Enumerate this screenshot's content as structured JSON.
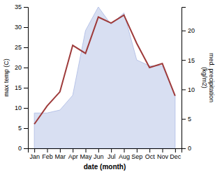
{
  "chart_data": {
    "type": "line",
    "categories": [
      "Jan",
      "Feb",
      "Mar",
      "Apr",
      "May",
      "Jun",
      "Jul",
      "Aug",
      "Sep",
      "Oct",
      "Nov",
      "Dec"
    ],
    "xlabel": "date (month)",
    "ylabel": "max temp (C)",
    "y2label": "med. precipitation\n(kg/m2)",
    "ylim": [
      0,
      35
    ],
    "yticks": [
      0,
      5,
      10,
      15,
      20,
      25,
      30,
      35
    ],
    "y2lim": [
      0,
      24
    ],
    "y2ticks": [
      0,
      5,
      10,
      15,
      20
    ],
    "grid": false,
    "series": [
      {
        "type": "area",
        "axis": "y2",
        "color": "#b8c4e8",
        "values": [
          6.0,
          6.0,
          6.5,
          9.0,
          20.0,
          24.0,
          21.0,
          23.0,
          15.0,
          14.0,
          14.0,
          9.0
        ]
      },
      {
        "type": "line",
        "color": "#9e3a3a",
        "values": [
          6,
          10.5,
          14,
          25.5,
          23.5,
          32.5,
          31,
          33,
          26,
          20,
          21,
          13
        ]
      }
    ]
  }
}
